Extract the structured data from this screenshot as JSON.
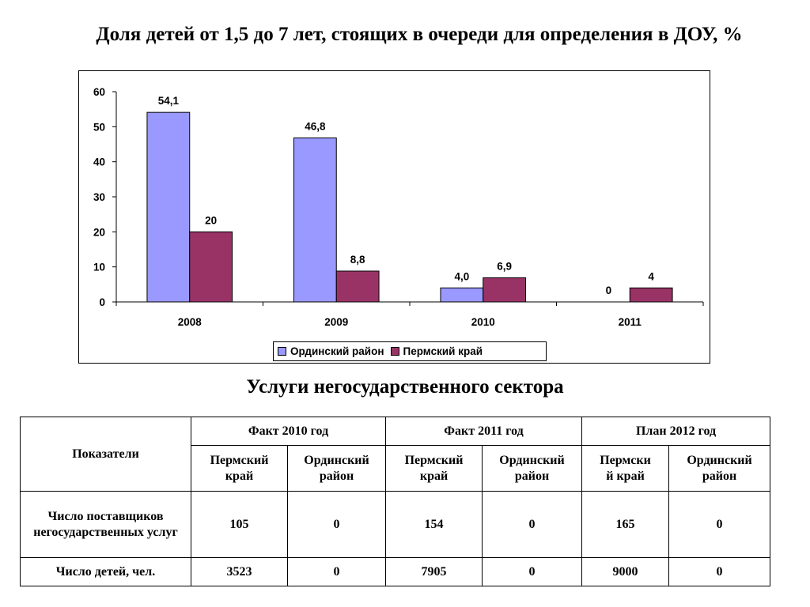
{
  "title": "Доля детей от 1,5 до 7 лет, стоящих в очереди для определения в ДОУ, %",
  "colors": {
    "series1": "#9999FF",
    "series2": "#993366"
  },
  "chart_data": {
    "type": "bar",
    "categories": [
      "2008",
      "2009",
      "2010",
      "2011"
    ],
    "series": [
      {
        "name": "Ординский район",
        "values": [
          54.1,
          46.8,
          4.0,
          0
        ],
        "labels": [
          "54,1",
          "46,8",
          "4,0",
          "0"
        ]
      },
      {
        "name": "Пермский край",
        "values": [
          20,
          8.8,
          6.9,
          4
        ],
        "labels": [
          "20",
          "8,8",
          "6,9",
          "4"
        ]
      }
    ],
    "yticks": [
      "0",
      "10",
      "20",
      "30",
      "40",
      "50",
      "60"
    ],
    "ylim": [
      0,
      60
    ],
    "grid": false,
    "legend": "bottom"
  },
  "section_title": "Услуги негосударственного сектора",
  "table": {
    "indicator_header": "Показатели",
    "periods": [
      "Факт 2010 год",
      "Факт 2011 год",
      "План 2012 год"
    ],
    "subheaders": [
      "Пермский\nкрай",
      "Ординский\nрайон",
      "Пермский\nкрай",
      "Ординский\nрайон",
      "Пермски\nй край",
      "Ординский\nрайон"
    ],
    "rows": [
      {
        "label": "Число поставщиков негосударственных услуг",
        "values": [
          "105",
          "0",
          "154",
          "0",
          "165",
          "0"
        ]
      },
      {
        "label": "Число детей, чел.",
        "values": [
          "3523",
          "0",
          "7905",
          "0",
          "9000",
          "0"
        ]
      }
    ]
  }
}
